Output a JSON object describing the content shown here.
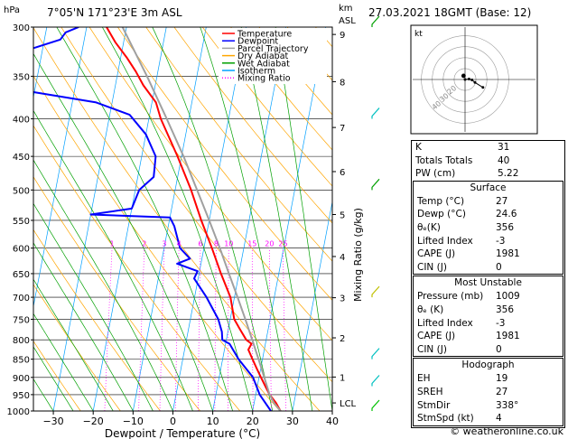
{
  "header": {
    "hpa_label": "hPa",
    "location": "7°05'N  171°23'E  3m  ASL",
    "km_label": "km",
    "asl_label": "ASL",
    "datetime": "27.03.2021  18GMT  (Base: 12)"
  },
  "footer": {
    "copyright": "© weatheronline.co.uk"
  },
  "colors": {
    "temperature": "#ff0000",
    "dewpoint": "#0000ff",
    "parcel": "#a0a0a0",
    "dry_adiabat": "#ffa500",
    "wet_adiabat": "#00a000",
    "isotherm": "#00a0ff",
    "mixing_ratio": "#ff00ff"
  },
  "chart_data": [
    {
      "type": "line",
      "subtype": "skew-T log-p",
      "xlabel": "Dewpoint / Temperature (°C)",
      "ylabel_right": "Mixing Ratio (g/kg)",
      "xlim": [
        -35,
        40
      ],
      "ylim_hpa": [
        1000,
        300
      ],
      "pressure_ticks": [
        300,
        350,
        400,
        450,
        500,
        550,
        600,
        650,
        700,
        750,
        800,
        850,
        900,
        950,
        1000
      ],
      "temperature_ticks": [
        -30,
        -20,
        -10,
        0,
        10,
        20,
        30,
        40
      ],
      "km_ticks": [
        {
          "label": "9",
          "p": 307
        },
        {
          "label": "8",
          "p": 356
        },
        {
          "label": "7",
          "p": 411
        },
        {
          "label": "6",
          "p": 472
        },
        {
          "label": "5",
          "p": 540
        },
        {
          "label": "4",
          "p": 616
        },
        {
          "label": "3",
          "p": 701
        },
        {
          "label": "2",
          "p": 795
        },
        {
          "label": "1",
          "p": 899
        },
        {
          "label": "LCL",
          "p": 975
        }
      ],
      "mixing_ratio_labels": [
        {
          "label": "1",
          "w": 1
        },
        {
          "label": "2",
          "w": 2
        },
        {
          "label": "3",
          "w": 3
        },
        {
          "label": "4",
          "w": 4
        },
        {
          "label": "6",
          "w": 6
        },
        {
          "label": "8",
          "w": 8
        },
        {
          "label": "10",
          "w": 10
        },
        {
          "label": "15",
          "w": 15
        },
        {
          "label": "20",
          "w": 20
        },
        {
          "label": "25",
          "w": 25
        }
      ],
      "legend": [
        "Temperature",
        "Dewpoint",
        "Parcel Trajectory",
        "Dry Adiabat",
        "Wet Adiabat",
        "Isotherm",
        "Mixing Ratio"
      ],
      "series": [
        {
          "name": "Temperature",
          "points": [
            {
              "p": 1000,
              "t": 27.0
            },
            {
              "p": 975,
              "t": 25.5
            },
            {
              "p": 950,
              "t": 23.5
            },
            {
              "p": 925,
              "t": 22.0
            },
            {
              "p": 900,
              "t": 20.5
            },
            {
              "p": 875,
              "t": 19.0
            },
            {
              "p": 850,
              "t": 17.5
            },
            {
              "p": 825,
              "t": 16.0
            },
            {
              "p": 810,
              "t": 16.5
            },
            {
              "p": 800,
              "t": 15.0
            },
            {
              "p": 775,
              "t": 13.0
            },
            {
              "p": 750,
              "t": 11.0
            },
            {
              "p": 700,
              "t": 9.0
            },
            {
              "p": 650,
              "t": 5.5
            },
            {
              "p": 600,
              "t": 2.0
            },
            {
              "p": 550,
              "t": -2.0
            },
            {
              "p": 500,
              "t": -6.0
            },
            {
              "p": 450,
              "t": -11.0
            },
            {
              "p": 400,
              "t": -17.0
            },
            {
              "p": 380,
              "t": -19.0
            },
            {
              "p": 360,
              "t": -23.0
            },
            {
              "p": 345,
              "t": -25.5
            },
            {
              "p": 330,
              "t": -28.5
            },
            {
              "p": 315,
              "t": -32.0
            },
            {
              "p": 300,
              "t": -35.0
            }
          ]
        },
        {
          "name": "Dewpoint",
          "points": [
            {
              "p": 1000,
              "t": 24.6
            },
            {
              "p": 950,
              "t": 21.0
            },
            {
              "p": 900,
              "t": 18.5
            },
            {
              "p": 850,
              "t": 14.0
            },
            {
              "p": 810,
              "t": 11.0
            },
            {
              "p": 800,
              "t": 9.0
            },
            {
              "p": 780,
              "t": 8.5
            },
            {
              "p": 750,
              "t": 7.0
            },
            {
              "p": 700,
              "t": 3.0
            },
            {
              "p": 660,
              "t": -1.0
            },
            {
              "p": 645,
              "t": -0.5
            },
            {
              "p": 630,
              "t": -6.0
            },
            {
              "p": 620,
              "t": -3.0
            },
            {
              "p": 600,
              "t": -6.0
            },
            {
              "p": 560,
              "t": -8.5
            },
            {
              "p": 545,
              "t": -10.0
            },
            {
              "p": 540,
              "t": -30.0
            },
            {
              "p": 530,
              "t": -20.0
            },
            {
              "p": 500,
              "t": -19.0
            },
            {
              "p": 480,
              "t": -16.0
            },
            {
              "p": 450,
              "t": -16.5
            },
            {
              "p": 420,
              "t": -20.0
            },
            {
              "p": 395,
              "t": -25.0
            },
            {
              "p": 380,
              "t": -34.0
            },
            {
              "p": 368,
              "t": -50.0
            },
            {
              "p": 362,
              "t": -55.0
            },
            {
              "p": 355,
              "t": -57.0
            },
            {
              "p": 350,
              "t": -74.0
            },
            {
              "p": 342,
              "t": -74.0
            },
            {
              "p": 337,
              "t": -60.0
            },
            {
              "p": 330,
              "t": -60.0
            },
            {
              "p": 320,
              "t": -52.0
            },
            {
              "p": 312,
              "t": -46.0
            },
            {
              "p": 305,
              "t": -45.0
            },
            {
              "p": 300,
              "t": -42.0
            }
          ]
        },
        {
          "name": "Parcel Trajectory",
          "points": [
            {
              "p": 1000,
              "t": 27.0
            },
            {
              "p": 975,
              "t": 25.0
            },
            {
              "p": 950,
              "t": 23.5
            },
            {
              "p": 900,
              "t": 21.3
            },
            {
              "p": 850,
              "t": 19.0
            },
            {
              "p": 800,
              "t": 16.5
            },
            {
              "p": 750,
              "t": 13.8
            },
            {
              "p": 700,
              "t": 10.8
            },
            {
              "p": 650,
              "t": 7.5
            },
            {
              "p": 600,
              "t": 4.0
            },
            {
              "p": 550,
              "t": 0.0
            },
            {
              "p": 500,
              "t": -4.5
            },
            {
              "p": 450,
              "t": -9.5
            },
            {
              "p": 400,
              "t": -15.5
            },
            {
              "p": 350,
              "t": -22.5
            },
            {
              "p": 300,
              "t": -31.0
            }
          ]
        }
      ],
      "wind_barbs": [
        {
          "p": 300,
          "color": "#00a000"
        },
        {
          "p": 400,
          "color": "#00c0c0"
        },
        {
          "p": 500,
          "color": "#00a000"
        },
        {
          "p": 700,
          "color": "#c0c000"
        },
        {
          "p": 850,
          "color": "#00c0c0"
        },
        {
          "p": 925,
          "color": "#00c0c0"
        },
        {
          "p": 1000,
          "color": "#00c000"
        }
      ]
    },
    {
      "type": "scatter",
      "subtype": "hodograph",
      "unit_label": "kt",
      "ring_labels": [
        "20",
        "30",
        "40"
      ],
      "points": [
        {
          "u": 0,
          "v": 0
        },
        {
          "u": 4,
          "v": 0.5
        },
        {
          "u": 7,
          "v": -0.5
        },
        {
          "u": 10,
          "v": -3
        },
        {
          "u": 18,
          "v": -8
        }
      ],
      "storm_motion": {
        "u": -1.5,
        "v": 3.7
      }
    }
  ],
  "indices": {
    "rows": [
      {
        "key": "K",
        "value": "31"
      },
      {
        "key": "Totals Totals",
        "value": "40"
      },
      {
        "key": "PW (cm)",
        "value": "5.22"
      }
    ]
  },
  "surface": {
    "title": "Surface",
    "rows": [
      {
        "key": "Temp (°C)",
        "value": "27"
      },
      {
        "key": "Dewp (°C)",
        "value": "24.6"
      },
      {
        "key": "θₑ(K)",
        "value": "356"
      },
      {
        "key": "Lifted Index",
        "value": "-3"
      },
      {
        "key": "CAPE (J)",
        "value": "1981"
      },
      {
        "key": "CIN (J)",
        "value": "0"
      }
    ]
  },
  "most_unstable": {
    "title": "Most Unstable",
    "rows": [
      {
        "key": "Pressure (mb)",
        "value": "1009"
      },
      {
        "key": "θₑ (K)",
        "value": "356"
      },
      {
        "key": "Lifted Index",
        "value": "-3"
      },
      {
        "key": "CAPE (J)",
        "value": "1981"
      },
      {
        "key": "CIN (J)",
        "value": "0"
      }
    ]
  },
  "hodograph_table": {
    "title": "Hodograph",
    "rows": [
      {
        "key": "EH",
        "value": "19"
      },
      {
        "key": "SREH",
        "value": "27"
      },
      {
        "key": "StmDir",
        "value": "338°"
      },
      {
        "key": "StmSpd (kt)",
        "value": "4"
      }
    ]
  }
}
